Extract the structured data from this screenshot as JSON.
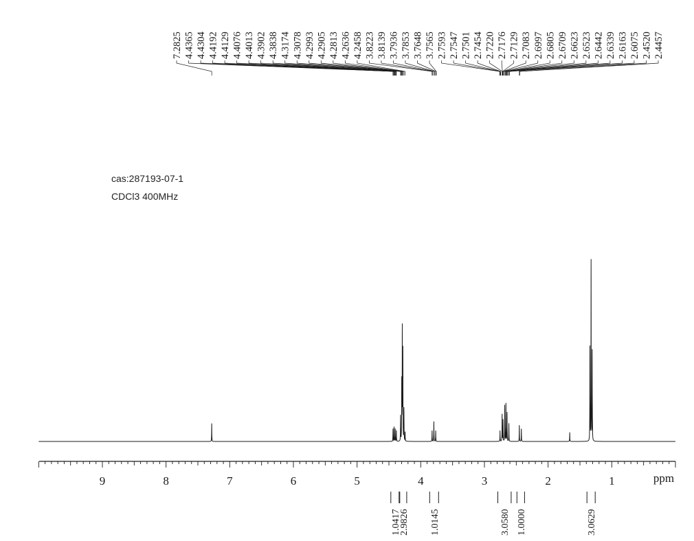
{
  "sample": {
    "cas": "cas:287193-07-1",
    "conditions": "CDCl3 400MHz"
  },
  "chart_data": {
    "type": "nmr-1h-spectrum",
    "xlabel": "ppm",
    "x_range": [
      10.0,
      0.0
    ],
    "x_reversed": true,
    "grid": false,
    "major_ticks": [
      9,
      8,
      7,
      6,
      5,
      4,
      3,
      2,
      1
    ],
    "peak_labels": [
      "7.2825",
      "4.4365",
      "4.4304",
      "4.4192",
      "4.4129",
      "4.4076",
      "4.4013",
      "4.3902",
      "4.3838",
      "4.3174",
      "4.3078",
      "4.2993",
      "4.2905",
      "4.2813",
      "4.2636",
      "4.2458",
      "3.8223",
      "3.8139",
      "3.7936",
      "3.7853",
      "3.7648",
      "3.7565",
      "2.7593",
      "2.7547",
      "2.7501",
      "2.7454",
      "2.7220",
      "2.7176",
      "2.7129",
      "2.7083",
      "2.6997",
      "2.6805",
      "2.6709",
      "2.6623",
      "2.6523",
      "2.6442",
      "2.6339",
      "2.6163",
      "2.6075",
      "2.4520",
      "2.4457"
    ],
    "peaks": [
      {
        "ppm": 7.283,
        "intensity": 0.1
      },
      {
        "ppm": 4.436,
        "intensity": 0.07
      },
      {
        "ppm": 4.419,
        "intensity": 0.08
      },
      {
        "ppm": 4.401,
        "intensity": 0.07
      },
      {
        "ppm": 4.383,
        "intensity": 0.06
      },
      {
        "ppm": 4.317,
        "intensity": 0.14
      },
      {
        "ppm": 4.299,
        "intensity": 0.33
      },
      {
        "ppm": 4.29,
        "intensity": 0.62
      },
      {
        "ppm": 4.281,
        "intensity": 0.5
      },
      {
        "ppm": 4.264,
        "intensity": 0.18
      },
      {
        "ppm": 4.246,
        "intensity": 0.05
      },
      {
        "ppm": 3.822,
        "intensity": 0.06
      },
      {
        "ppm": 3.794,
        "intensity": 0.11
      },
      {
        "ppm": 3.765,
        "intensity": 0.06
      },
      {
        "ppm": 2.755,
        "intensity": 0.06
      },
      {
        "ppm": 2.722,
        "intensity": 0.15
      },
      {
        "ppm": 2.708,
        "intensity": 0.12
      },
      {
        "ppm": 2.681,
        "intensity": 0.2
      },
      {
        "ppm": 2.662,
        "intensity": 0.21
      },
      {
        "ppm": 2.644,
        "intensity": 0.16
      },
      {
        "ppm": 2.616,
        "intensity": 0.1
      },
      {
        "ppm": 2.452,
        "intensity": 0.09
      },
      {
        "ppm": 2.42,
        "intensity": 0.07
      },
      {
        "ppm": 1.66,
        "intensity": 0.05
      },
      {
        "ppm": 1.343,
        "intensity": 0.52
      },
      {
        "ppm": 1.325,
        "intensity": 1.0
      },
      {
        "ppm": 1.307,
        "intensity": 0.5
      }
    ],
    "integrations": [
      {
        "label": "1.0417",
        "from_ppm": 4.47,
        "to_ppm": 4.34
      },
      {
        "label": "2.9826",
        "from_ppm": 4.33,
        "to_ppm": 4.22
      },
      {
        "label": "1.0145",
        "from_ppm": 3.86,
        "to_ppm": 3.72
      },
      {
        "label": "3.0580",
        "from_ppm": 2.79,
        "to_ppm": 2.58
      },
      {
        "label": "1.0000",
        "from_ppm": 2.49,
        "to_ppm": 2.37
      },
      {
        "label": "3.0629",
        "from_ppm": 1.39,
        "to_ppm": 1.26
      }
    ]
  }
}
